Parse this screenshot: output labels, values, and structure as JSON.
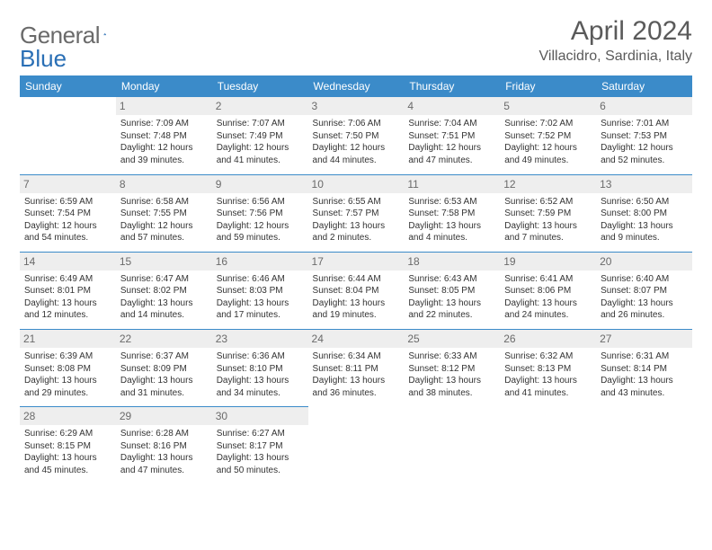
{
  "brand": {
    "word1": "General",
    "word2": "Blue",
    "logo_color": "#2a6fb5"
  },
  "title": "April 2024",
  "location": "Villacidro, Sardinia, Italy",
  "colors": {
    "header_bg": "#3b8bc9",
    "header_text": "#ffffff",
    "daynum_bg": "#eeeeee",
    "daynum_text": "#6a6a6a",
    "rule": "#3b8bc9",
    "body_text": "#333333",
    "title_text": "#5a5a5a"
  },
  "weekdays": [
    "Sunday",
    "Monday",
    "Tuesday",
    "Wednesday",
    "Thursday",
    "Friday",
    "Saturday"
  ],
  "weeks": [
    [
      null,
      {
        "n": "1",
        "sr": "Sunrise: 7:09 AM",
        "ss": "Sunset: 7:48 PM",
        "d1": "Daylight: 12 hours",
        "d2": "and 39 minutes."
      },
      {
        "n": "2",
        "sr": "Sunrise: 7:07 AM",
        "ss": "Sunset: 7:49 PM",
        "d1": "Daylight: 12 hours",
        "d2": "and 41 minutes."
      },
      {
        "n": "3",
        "sr": "Sunrise: 7:06 AM",
        "ss": "Sunset: 7:50 PM",
        "d1": "Daylight: 12 hours",
        "d2": "and 44 minutes."
      },
      {
        "n": "4",
        "sr": "Sunrise: 7:04 AM",
        "ss": "Sunset: 7:51 PM",
        "d1": "Daylight: 12 hours",
        "d2": "and 47 minutes."
      },
      {
        "n": "5",
        "sr": "Sunrise: 7:02 AM",
        "ss": "Sunset: 7:52 PM",
        "d1": "Daylight: 12 hours",
        "d2": "and 49 minutes."
      },
      {
        "n": "6",
        "sr": "Sunrise: 7:01 AM",
        "ss": "Sunset: 7:53 PM",
        "d1": "Daylight: 12 hours",
        "d2": "and 52 minutes."
      }
    ],
    [
      {
        "n": "7",
        "sr": "Sunrise: 6:59 AM",
        "ss": "Sunset: 7:54 PM",
        "d1": "Daylight: 12 hours",
        "d2": "and 54 minutes."
      },
      {
        "n": "8",
        "sr": "Sunrise: 6:58 AM",
        "ss": "Sunset: 7:55 PM",
        "d1": "Daylight: 12 hours",
        "d2": "and 57 minutes."
      },
      {
        "n": "9",
        "sr": "Sunrise: 6:56 AM",
        "ss": "Sunset: 7:56 PM",
        "d1": "Daylight: 12 hours",
        "d2": "and 59 minutes."
      },
      {
        "n": "10",
        "sr": "Sunrise: 6:55 AM",
        "ss": "Sunset: 7:57 PM",
        "d1": "Daylight: 13 hours",
        "d2": "and 2 minutes."
      },
      {
        "n": "11",
        "sr": "Sunrise: 6:53 AM",
        "ss": "Sunset: 7:58 PM",
        "d1": "Daylight: 13 hours",
        "d2": "and 4 minutes."
      },
      {
        "n": "12",
        "sr": "Sunrise: 6:52 AM",
        "ss": "Sunset: 7:59 PM",
        "d1": "Daylight: 13 hours",
        "d2": "and 7 minutes."
      },
      {
        "n": "13",
        "sr": "Sunrise: 6:50 AM",
        "ss": "Sunset: 8:00 PM",
        "d1": "Daylight: 13 hours",
        "d2": "and 9 minutes."
      }
    ],
    [
      {
        "n": "14",
        "sr": "Sunrise: 6:49 AM",
        "ss": "Sunset: 8:01 PM",
        "d1": "Daylight: 13 hours",
        "d2": "and 12 minutes."
      },
      {
        "n": "15",
        "sr": "Sunrise: 6:47 AM",
        "ss": "Sunset: 8:02 PM",
        "d1": "Daylight: 13 hours",
        "d2": "and 14 minutes."
      },
      {
        "n": "16",
        "sr": "Sunrise: 6:46 AM",
        "ss": "Sunset: 8:03 PM",
        "d1": "Daylight: 13 hours",
        "d2": "and 17 minutes."
      },
      {
        "n": "17",
        "sr": "Sunrise: 6:44 AM",
        "ss": "Sunset: 8:04 PM",
        "d1": "Daylight: 13 hours",
        "d2": "and 19 minutes."
      },
      {
        "n": "18",
        "sr": "Sunrise: 6:43 AM",
        "ss": "Sunset: 8:05 PM",
        "d1": "Daylight: 13 hours",
        "d2": "and 22 minutes."
      },
      {
        "n": "19",
        "sr": "Sunrise: 6:41 AM",
        "ss": "Sunset: 8:06 PM",
        "d1": "Daylight: 13 hours",
        "d2": "and 24 minutes."
      },
      {
        "n": "20",
        "sr": "Sunrise: 6:40 AM",
        "ss": "Sunset: 8:07 PM",
        "d1": "Daylight: 13 hours",
        "d2": "and 26 minutes."
      }
    ],
    [
      {
        "n": "21",
        "sr": "Sunrise: 6:39 AM",
        "ss": "Sunset: 8:08 PM",
        "d1": "Daylight: 13 hours",
        "d2": "and 29 minutes."
      },
      {
        "n": "22",
        "sr": "Sunrise: 6:37 AM",
        "ss": "Sunset: 8:09 PM",
        "d1": "Daylight: 13 hours",
        "d2": "and 31 minutes."
      },
      {
        "n": "23",
        "sr": "Sunrise: 6:36 AM",
        "ss": "Sunset: 8:10 PM",
        "d1": "Daylight: 13 hours",
        "d2": "and 34 minutes."
      },
      {
        "n": "24",
        "sr": "Sunrise: 6:34 AM",
        "ss": "Sunset: 8:11 PM",
        "d1": "Daylight: 13 hours",
        "d2": "and 36 minutes."
      },
      {
        "n": "25",
        "sr": "Sunrise: 6:33 AM",
        "ss": "Sunset: 8:12 PM",
        "d1": "Daylight: 13 hours",
        "d2": "and 38 minutes."
      },
      {
        "n": "26",
        "sr": "Sunrise: 6:32 AM",
        "ss": "Sunset: 8:13 PM",
        "d1": "Daylight: 13 hours",
        "d2": "and 41 minutes."
      },
      {
        "n": "27",
        "sr": "Sunrise: 6:31 AM",
        "ss": "Sunset: 8:14 PM",
        "d1": "Daylight: 13 hours",
        "d2": "and 43 minutes."
      }
    ],
    [
      {
        "n": "28",
        "sr": "Sunrise: 6:29 AM",
        "ss": "Sunset: 8:15 PM",
        "d1": "Daylight: 13 hours",
        "d2": "and 45 minutes."
      },
      {
        "n": "29",
        "sr": "Sunrise: 6:28 AM",
        "ss": "Sunset: 8:16 PM",
        "d1": "Daylight: 13 hours",
        "d2": "and 47 minutes."
      },
      {
        "n": "30",
        "sr": "Sunrise: 6:27 AM",
        "ss": "Sunset: 8:17 PM",
        "d1": "Daylight: 13 hours",
        "d2": "and 50 minutes."
      },
      null,
      null,
      null,
      null
    ]
  ]
}
